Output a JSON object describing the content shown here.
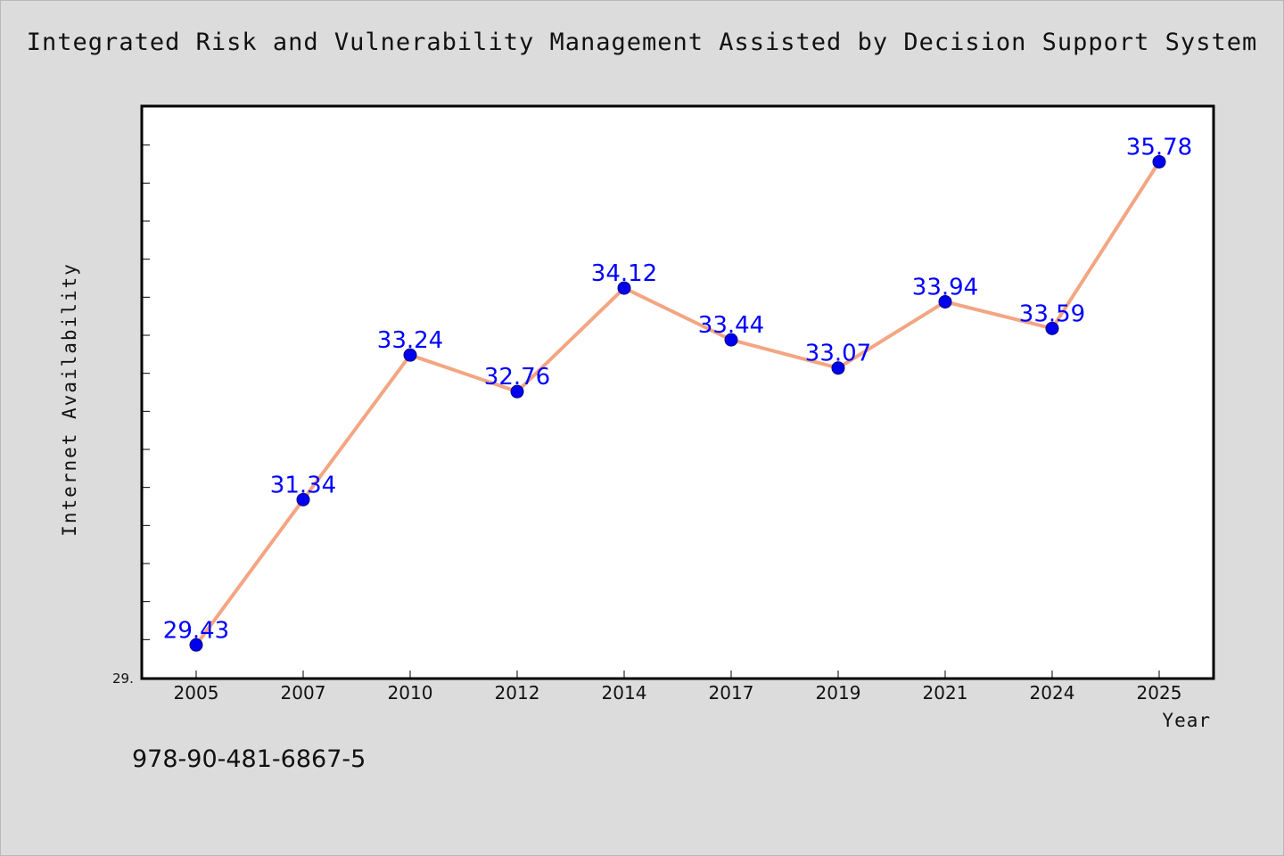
{
  "chart_data": {
    "type": "line",
    "title": "Integrated Risk and Vulnerability Management Assisted by Decision Support System",
    "xlabel": "Year",
    "ylabel": "Internet Availability",
    "categories": [
      "2005",
      "2007",
      "2010",
      "2012",
      "2014",
      "2017",
      "2019",
      "2021",
      "2024",
      "2025"
    ],
    "series": [
      {
        "values": [
          29.43,
          31.34,
          33.24,
          32.76,
          34.12,
          33.44,
          33.07,
          33.94,
          33.59,
          35.78
        ]
      }
    ],
    "data_labels": [
      "29.43",
      "31.34",
      "33.24",
      "32.76",
      "34.12",
      "33.44",
      "33.07",
      "33.94",
      "33.59",
      "35.78"
    ],
    "y_tick_label": "29.",
    "ylim": [
      29.0,
      36.5
    ],
    "grid": false,
    "legend": "none",
    "colors": {
      "line": "#f4a582",
      "marker": "#0000ee",
      "data_label": "#0000ff",
      "background": "#dcdcdc",
      "plot_background": "#ffffff"
    }
  },
  "footer": {
    "isbn": "978-90-481-6867-5"
  }
}
